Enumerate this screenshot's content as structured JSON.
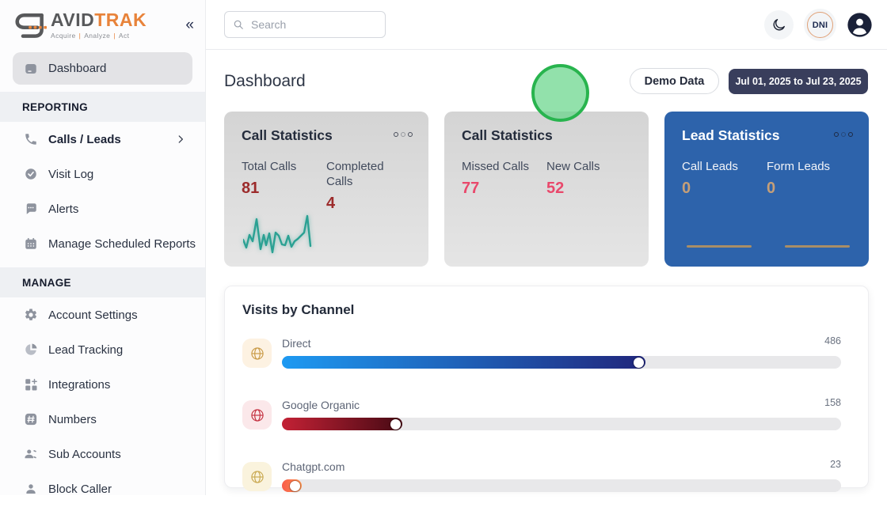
{
  "brand": {
    "name_gray": "AVID",
    "name_orange": "TRAK",
    "tagline_parts": [
      "Acquire",
      "Analyze",
      "Act"
    ],
    "tagline_separator": "|"
  },
  "topbar": {
    "search_placeholder": "Search",
    "dni_badge": "DNI"
  },
  "sidebar": {
    "dashboard_label": "Dashboard",
    "sections": [
      {
        "title": "REPORTING",
        "items": [
          {
            "label": "Calls / Leads"
          },
          {
            "label": "Visit Log"
          },
          {
            "label": "Alerts"
          },
          {
            "label": "Manage Scheduled Reports"
          }
        ]
      },
      {
        "title": "MANAGE",
        "items": [
          {
            "label": "Account Settings"
          },
          {
            "label": "Lead Tracking"
          },
          {
            "label": "Integrations"
          },
          {
            "label": "Numbers"
          },
          {
            "label": "Sub Accounts"
          },
          {
            "label": "Block Caller"
          }
        ]
      }
    ]
  },
  "page": {
    "title": "Dashboard",
    "demo_button": "Demo Data",
    "date_range": "Jul 01, 2025 to Jul 23, 2025"
  },
  "cards": [
    {
      "title": "Call Statistics",
      "stat1_label": "Total Calls",
      "stat1_value": "81",
      "stat2_label": "Completed Calls",
      "stat2_value": "4",
      "accent": "#9c2b2b",
      "sparkline": "0,36 4,46 8,30 12,38 17,10 22,48 26,30 29,43 33,28 37,52 41,27 45,31 49,42 53,43 57,31 61,45 65,38 69,35 73,31 77,27 81,6 85,44"
    },
    {
      "title": "Call Statistics",
      "stat1_label": "Missed Calls",
      "stat1_value": "77",
      "stat2_label": "New Calls",
      "stat2_value": "52",
      "accent": "#e9486b"
    },
    {
      "title": "Lead Statistics",
      "stat1_label": "Call Leads",
      "stat1_value": "0",
      "stat2_label": "Form Leads",
      "stat2_value": "0",
      "accent": "#c59f78"
    }
  ],
  "visits": {
    "title": "Visits by Channel",
    "rows": [
      {
        "label": "Direct",
        "value": "486",
        "percent": 65,
        "bar_from": "#1e9af2",
        "bar_to": "#20267c",
        "tile_bg": "#fdf2e2",
        "globe": "#c99a45"
      },
      {
        "label": "Google Organic",
        "value": "158",
        "percent": 21.5,
        "bar_from": "#c32135",
        "bar_to": "#470a14",
        "tile_bg": "#fbe8ea",
        "globe": "#c4303f"
      },
      {
        "label": "Chatgpt.com",
        "value": "23",
        "percent": 3.6,
        "bar_from": "#f95b49",
        "bar_to": "#fc9350",
        "tile_bg": "#faf3dd",
        "globe": "#c9a84f"
      }
    ]
  },
  "chart_data": {
    "type": "bar",
    "title": "Visits by Channel",
    "orientation": "horizontal",
    "categories": [
      "Direct",
      "Google Organic",
      "Chatgpt.com"
    ],
    "values": [
      486,
      158,
      23
    ]
  },
  "colors": {
    "brand_orange": "#e8833a",
    "lead_card_bg": "#2d63ab",
    "date_button_bg": "#393e5c",
    "cursor_green_border": "#28b44e",
    "sparkline_teal": "#2ba193"
  }
}
